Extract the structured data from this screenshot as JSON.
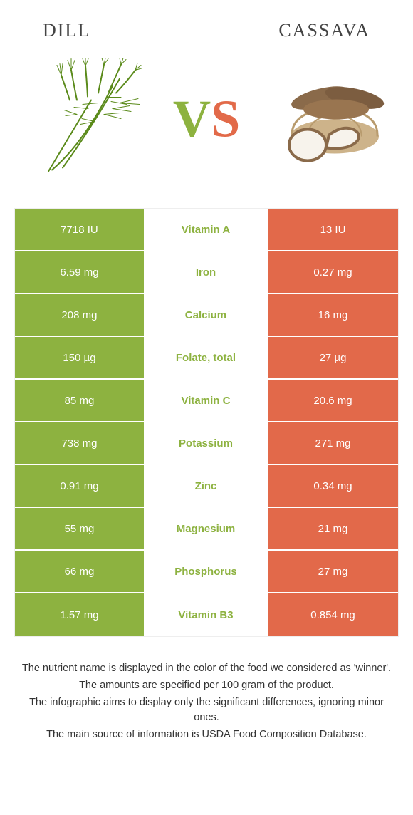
{
  "colors": {
    "left_bg": "#8db240",
    "right_bg": "#e2694a",
    "left_name": "#8db240",
    "right_name": "#e2694a"
  },
  "header": {
    "left_title": "DILL",
    "right_title": "CASSAVA"
  },
  "vs": {
    "v": "V",
    "s": "S"
  },
  "rows": [
    {
      "left": "7718 IU",
      "mid": "Vitamin A",
      "right": "13 IU",
      "winner": "left"
    },
    {
      "left": "6.59 mg",
      "mid": "Iron",
      "right": "0.27 mg",
      "winner": "left"
    },
    {
      "left": "208 mg",
      "mid": "Calcium",
      "right": "16 mg",
      "winner": "left"
    },
    {
      "left": "150 µg",
      "mid": "Folate, total",
      "right": "27 µg",
      "winner": "left"
    },
    {
      "left": "85 mg",
      "mid": "Vitamin C",
      "right": "20.6 mg",
      "winner": "left"
    },
    {
      "left": "738 mg",
      "mid": "Potassium",
      "right": "271 mg",
      "winner": "left"
    },
    {
      "left": "0.91 mg",
      "mid": "Zinc",
      "right": "0.34 mg",
      "winner": "left"
    },
    {
      "left": "55 mg",
      "mid": "Magnesium",
      "right": "21 mg",
      "winner": "left"
    },
    {
      "left": "66 mg",
      "mid": "Phosphorus",
      "right": "27 mg",
      "winner": "left"
    },
    {
      "left": "1.57 mg",
      "mid": "Vitamin B3",
      "right": "0.854 mg",
      "winner": "left"
    }
  ],
  "notes": [
    "The nutrient name is displayed in the color of the food we considered as 'winner'.",
    "The amounts are specified per 100 gram of the product.",
    "The infographic aims to display only the significant differences, ignoring minor ones.",
    "The main source of information is USDA Food Composition Database."
  ]
}
